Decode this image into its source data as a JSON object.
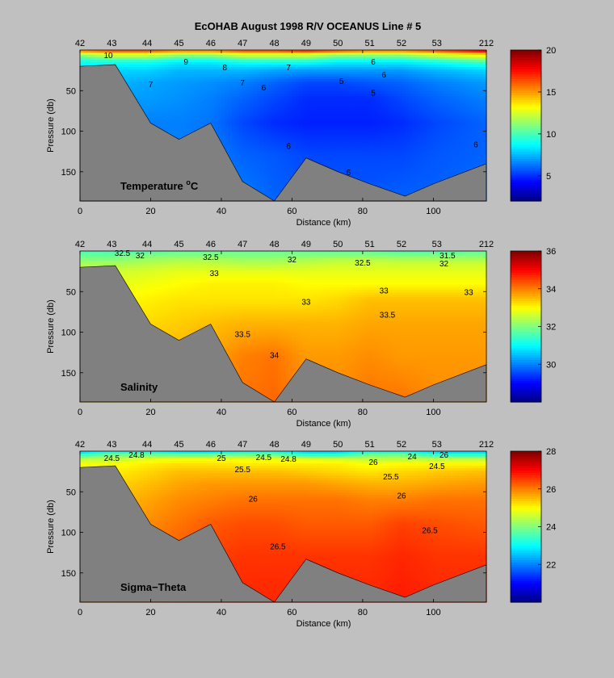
{
  "title": "EcOHAB   August 1998   R/V OCEANUS   Line # 5",
  "colors": {
    "background": "#c0c0c0",
    "bathymetry": "#808080"
  },
  "shared": {
    "xlabel": "Distance (km)",
    "ylabel": "Pressure (db)",
    "xlim": [
      0,
      115
    ],
    "ylim": [
      0,
      186
    ],
    "x_ticks": [
      0,
      20,
      40,
      60,
      80,
      100
    ],
    "y_ticks": [
      50,
      100,
      150
    ],
    "stations": [
      "42",
      "43",
      "44",
      "45",
      "46",
      "47",
      "48",
      "49",
      "50",
      "51",
      "52",
      "53",
      "212"
    ],
    "station_km": [
      0,
      9,
      19,
      28,
      37,
      46,
      55,
      64,
      73,
      82,
      91,
      101,
      115
    ],
    "bottom_profile": [
      [
        0,
        20
      ],
      [
        10,
        18
      ],
      [
        20,
        90
      ],
      [
        28,
        110
      ],
      [
        37,
        90
      ],
      [
        46,
        162
      ],
      [
        55,
        186
      ],
      [
        64,
        133
      ],
      [
        73,
        150
      ],
      [
        82,
        165
      ],
      [
        92,
        180
      ],
      [
        100,
        165
      ],
      [
        115,
        140
      ]
    ]
  },
  "chart_data": [
    {
      "type": "heatmap",
      "name": "Temperature °C",
      "title_main": "Temperature ",
      "title_sup": "o",
      "title_end": "C",
      "colorbar_range": [
        2,
        20
      ],
      "colorbar_ticks": [
        5,
        10,
        15,
        20
      ],
      "depth_levels": [
        0,
        5,
        10,
        15,
        25,
        40,
        60,
        90,
        130,
        186
      ],
      "values_by_depth": [
        [
          16,
          17,
          17,
          16,
          16,
          17,
          17,
          18,
          17,
          16,
          16,
          17,
          19
        ],
        [
          12,
          13,
          13,
          12,
          12,
          13,
          13,
          13,
          12,
          12,
          12,
          13,
          14
        ],
        [
          10,
          11,
          11,
          10,
          10,
          11,
          11,
          11,
          10,
          10,
          10,
          11,
          12
        ],
        [
          9,
          9,
          9,
          8.5,
          8.5,
          9,
          9,
          9,
          8.5,
          8.5,
          8.5,
          9,
          10
        ],
        [
          8,
          8,
          8,
          7.5,
          7.5,
          7.5,
          7.2,
          7,
          7,
          7,
          7,
          7.5,
          8
        ],
        [
          7.5,
          7.5,
          7.2,
          7,
          6.8,
          6.5,
          6,
          5.5,
          5.5,
          5.8,
          6,
          6.5,
          7
        ],
        [
          7,
          7,
          7,
          6.8,
          6.5,
          6,
          5.5,
          5,
          5,
          5,
          5.5,
          6,
          6.5
        ],
        [
          6.5,
          6.5,
          6.5,
          6.5,
          6.3,
          5.5,
          5,
          4.8,
          4.8,
          4.8,
          5,
          5.5,
          6
        ],
        [
          6.5,
          6.5,
          6.5,
          6.5,
          6.5,
          6,
          5.8,
          5.5,
          5.5,
          5.5,
          5.5,
          5.8,
          6
        ],
        [
          6.5,
          6.5,
          6.5,
          6.5,
          6.5,
          6.5,
          6,
          5.8,
          5.8,
          5.8,
          6,
          6,
          6.2
        ]
      ],
      "contour_labels": [
        {
          "text": "10",
          "x": 8,
          "y": 6
        },
        {
          "text": "9",
          "x": 30,
          "y": 14
        },
        {
          "text": "8",
          "x": 41,
          "y": 21
        },
        {
          "text": "7",
          "x": 59,
          "y": 21
        },
        {
          "text": "6",
          "x": 83,
          "y": 14
        },
        {
          "text": "7",
          "x": 20,
          "y": 42
        },
        {
          "text": "7",
          "x": 46,
          "y": 40
        },
        {
          "text": "6",
          "x": 52,
          "y": 46
        },
        {
          "text": "5",
          "x": 74,
          "y": 38
        },
        {
          "text": "6",
          "x": 86,
          "y": 30
        },
        {
          "text": "5",
          "x": 83,
          "y": 52
        },
        {
          "text": "6",
          "x": 59,
          "y": 118
        },
        {
          "text": "6",
          "x": 76,
          "y": 150
        },
        {
          "text": "6",
          "x": 112,
          "y": 116
        }
      ]
    },
    {
      "type": "heatmap",
      "name": "Salinity",
      "title_main": "Salinity",
      "title_sup": "",
      "title_end": "",
      "colorbar_range": [
        28,
        36
      ],
      "colorbar_ticks": [
        30,
        32,
        34,
        36
      ],
      "depth_levels": [
        0,
        5,
        10,
        15,
        25,
        40,
        60,
        90,
        130,
        186
      ],
      "values_by_depth": [
        [
          31.5,
          31.5,
          31.5,
          31.8,
          31.8,
          31.8,
          31.8,
          31.8,
          31.8,
          31.8,
          31.5,
          31.5,
          31.8
        ],
        [
          31.8,
          31.8,
          32,
          32,
          32,
          32,
          32,
          32,
          32,
          32,
          32,
          32,
          32
        ],
        [
          32,
          32,
          32.2,
          32.3,
          32.3,
          32.2,
          32.2,
          32.3,
          32.4,
          32.4,
          32.3,
          32.3,
          32.3
        ],
        [
          32.3,
          32.3,
          32.4,
          32.5,
          32.5,
          32.4,
          32.4,
          32.5,
          32.6,
          32.6,
          32.6,
          32.6,
          32.6
        ],
        [
          32.6,
          32.6,
          32.7,
          32.8,
          32.8,
          32.8,
          32.8,
          32.8,
          32.8,
          32.8,
          32.8,
          32.8,
          32.8
        ],
        [
          32.8,
          32.8,
          32.9,
          33,
          33.1,
          33.1,
          33.1,
          33,
          33,
          33,
          33,
          33,
          33
        ],
        [
          33,
          33,
          33.1,
          33.2,
          33.2,
          33.2,
          33.2,
          33.2,
          33.3,
          33.5,
          33.5,
          33.5,
          33.5
        ],
        [
          33.2,
          33.2,
          33.3,
          33.4,
          33.5,
          33.6,
          33.6,
          33.6,
          33.6,
          33.7,
          33.7,
          33.7,
          33.7
        ],
        [
          33.4,
          33.4,
          33.5,
          33.6,
          33.7,
          34,
          34.1,
          33.8,
          33.8,
          33.9,
          33.8,
          33.8,
          33.8
        ],
        [
          33.5,
          33.5,
          33.6,
          33.7,
          33.9,
          34.1,
          34.2,
          33.9,
          33.9,
          34.1,
          34.1,
          33.9,
          33.9
        ]
      ],
      "contour_labels": [
        {
          "text": "32.5",
          "x": 12,
          "y": 2
        },
        {
          "text": "32",
          "x": 17,
          "y": 5
        },
        {
          "text": "32.5",
          "x": 37,
          "y": 7
        },
        {
          "text": "32",
          "x": 60,
          "y": 10
        },
        {
          "text": "32.5",
          "x": 80,
          "y": 14
        },
        {
          "text": "31.5",
          "x": 104,
          "y": 5
        },
        {
          "text": "32",
          "x": 103,
          "y": 15
        },
        {
          "text": "33",
          "x": 38,
          "y": 27
        },
        {
          "text": "33",
          "x": 64,
          "y": 62
        },
        {
          "text": "33",
          "x": 86,
          "y": 48
        },
        {
          "text": "33",
          "x": 110,
          "y": 50
        },
        {
          "text": "33.5",
          "x": 46,
          "y": 102
        },
        {
          "text": "33.5",
          "x": 87,
          "y": 78
        },
        {
          "text": "34",
          "x": 55,
          "y": 128
        }
      ]
    },
    {
      "type": "heatmap",
      "name": "Sigma-Theta",
      "title_main": "Sigma−Theta",
      "title_sup": "",
      "title_end": "",
      "colorbar_range": [
        20,
        28
      ],
      "colorbar_ticks": [
        22,
        24,
        26,
        28
      ],
      "depth_levels": [
        0,
        5,
        10,
        15,
        25,
        40,
        60,
        90,
        130,
        186
      ],
      "values_by_depth": [
        [
          22.5,
          23,
          23,
          22.5,
          22.5,
          23,
          23,
          22.5,
          22.5,
          23,
          23,
          22.5,
          22.5
        ],
        [
          23.5,
          24,
          24,
          24,
          24,
          24,
          24,
          23.5,
          23.5,
          24,
          24,
          23.5,
          23.5
        ],
        [
          24.5,
          24.5,
          24.8,
          24.9,
          24.9,
          24.9,
          24.9,
          24.8,
          24.7,
          24.5,
          24.5,
          24.5,
          24.5
        ],
        [
          24.9,
          24.9,
          25.1,
          25.2,
          25.2,
          25.1,
          25.1,
          25.1,
          25.1,
          24.9,
          25,
          25,
          25
        ],
        [
          25.1,
          25.1,
          25.3,
          25.5,
          25.5,
          25.5,
          25.5,
          25.4,
          25.3,
          25.2,
          25.3,
          25.4,
          25.5
        ],
        [
          25.3,
          25.3,
          25.5,
          25.7,
          25.8,
          25.8,
          25.8,
          25.8,
          25.7,
          25.6,
          25.6,
          25.7,
          25.8
        ],
        [
          25.5,
          25.5,
          25.7,
          25.9,
          26,
          26.1,
          26.1,
          26.1,
          26.1,
          26,
          26,
          26.1,
          26.1
        ],
        [
          25.7,
          25.7,
          25.9,
          26.1,
          26.3,
          26.4,
          26.4,
          26.3,
          26.3,
          26.3,
          26.5,
          26.4,
          26.3
        ],
        [
          25.9,
          25.9,
          26.1,
          26.3,
          26.5,
          26.6,
          26.6,
          26.6,
          26.6,
          26.6,
          26.7,
          26.6,
          26.6
        ],
        [
          26,
          26,
          26.2,
          26.4,
          26.6,
          26.7,
          26.7,
          26.7,
          26.7,
          26.7,
          26.8,
          26.7,
          26.7
        ]
      ],
      "contour_labels": [
        {
          "text": "24.5",
          "x": 9,
          "y": 8
        },
        {
          "text": "24.8",
          "x": 16,
          "y": 4
        },
        {
          "text": "25",
          "x": 40,
          "y": 8
        },
        {
          "text": "24.5",
          "x": 52,
          "y": 7
        },
        {
          "text": "24.8",
          "x": 59,
          "y": 9
        },
        {
          "text": "25.5",
          "x": 46,
          "y": 22
        },
        {
          "text": "26",
          "x": 83,
          "y": 13
        },
        {
          "text": "24",
          "x": 94,
          "y": 6
        },
        {
          "text": "26",
          "x": 103,
          "y": 4
        },
        {
          "text": "24.5",
          "x": 101,
          "y": 18
        },
        {
          "text": "25.5",
          "x": 88,
          "y": 31
        },
        {
          "text": "26",
          "x": 49,
          "y": 58
        },
        {
          "text": "26",
          "x": 91,
          "y": 54
        },
        {
          "text": "26.5",
          "x": 99,
          "y": 97
        },
        {
          "text": "26.5",
          "x": 56,
          "y": 117
        }
      ]
    }
  ]
}
